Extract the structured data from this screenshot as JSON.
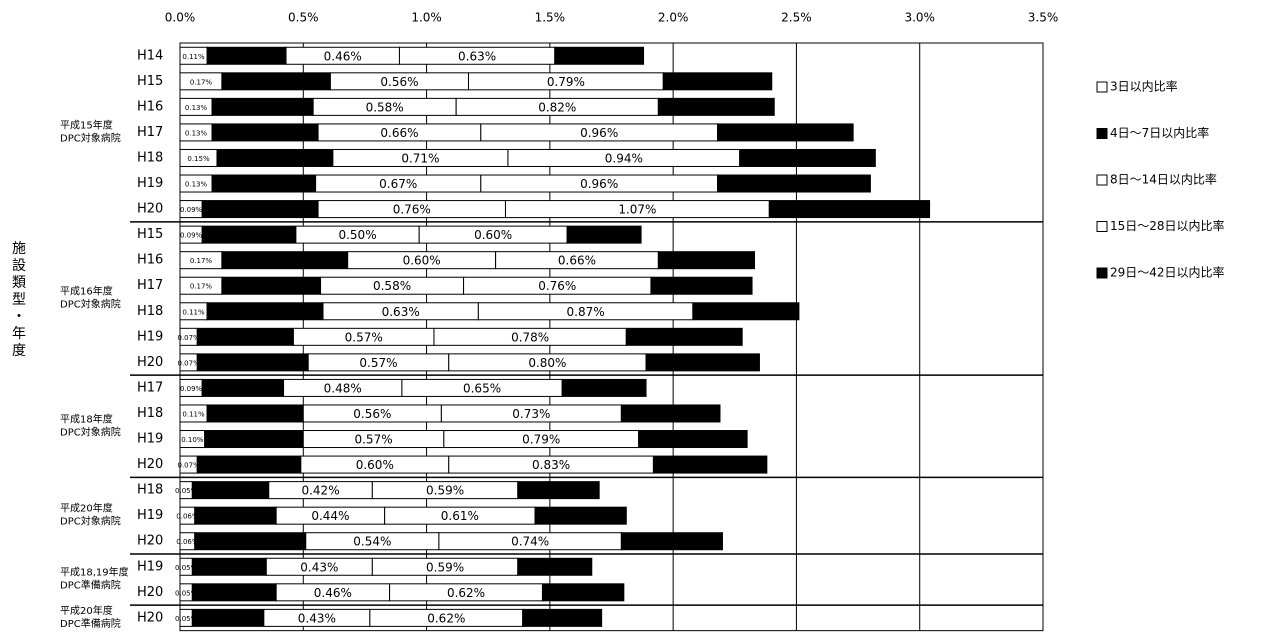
{
  "chart_data": {
    "type": "stacked-bar-horizontal",
    "axis_label": "施設類型・年度",
    "groups": [
      {
        "label": [
          "平成15年度",
          "DPC対象病院"
        ],
        "categories": [
          "H14",
          "H15",
          "H16",
          "H17",
          "H18",
          "H19",
          "H20"
        ]
      },
      {
        "label": [
          "平成16年度",
          "DPC対象病院"
        ],
        "categories": [
          "H15",
          "H16",
          "H17",
          "H18",
          "H19",
          "H20"
        ]
      },
      {
        "label": [
          "平成18年度",
          "DPC対象病院"
        ],
        "categories": [
          "H17",
          "H18",
          "H19",
          "H20"
        ]
      },
      {
        "label": [
          "平成20年度",
          "DPC対象病院"
        ],
        "categories": [
          "H18",
          "H19",
          "H20"
        ]
      },
      {
        "label": [
          "平成18,19年度",
          "DPC準備病院"
        ],
        "categories": [
          "H19",
          "H20"
        ]
      },
      {
        "label": [
          "平成20年度",
          "DPC準備病院"
        ],
        "categories": [
          "H20"
        ]
      }
    ],
    "series": [
      {
        "name": "3日以内比率",
        "color": "#ffffff",
        "values": [
          0.11,
          0.17,
          0.13,
          0.13,
          0.15,
          0.13,
          0.09,
          0.09,
          0.17,
          0.17,
          0.11,
          0.07,
          0.07,
          0.09,
          0.11,
          0.1,
          0.07,
          0.05,
          0.06,
          0.06,
          0.05,
          0.05,
          0.05
        ],
        "value_labels": [
          "0.11%",
          "0.17%",
          "0.13%",
          "0.13%",
          "0.15%",
          "0.13%",
          "0.09%",
          "0.09%",
          "0.17%",
          "0.17%",
          "0.11%",
          "0.07%",
          "0.07%",
          "0.09%",
          "0.11%",
          "0.10%",
          "0.07%",
          "0.05%",
          "0.06%",
          "0.06%",
          "0.05%",
          "0.05%",
          "0.05%"
        ]
      },
      {
        "name": "4日～7日以内比率",
        "color": "#000000",
        "values": [
          0.32,
          0.44,
          0.41,
          0.43,
          0.47,
          0.42,
          0.47,
          0.38,
          0.51,
          0.4,
          0.47,
          0.39,
          0.45,
          0.33,
          0.39,
          0.4,
          0.42,
          0.31,
          0.33,
          0.45,
          0.3,
          0.34,
          0.29
        ],
        "value_labels": [
          "0.32%",
          "0.44%",
          "0.41%",
          "0.43%",
          "0.47%",
          "0.42%",
          "0.47%",
          "0.38%",
          "0.51%",
          "0.40%",
          "0.47%",
          "0.39%",
          "0.45%",
          "0.33%",
          "0.39%",
          "0.40%",
          "0.42%",
          "0.31%",
          "0.33%",
          "0.45%",
          "0.30%",
          "0.34%",
          "0.29%"
        ]
      },
      {
        "name": "8日～14日以内比率",
        "color": "#ffffff",
        "values": [
          0.46,
          0.56,
          0.58,
          0.66,
          0.71,
          0.67,
          0.76,
          0.5,
          0.6,
          0.58,
          0.63,
          0.57,
          0.57,
          0.48,
          0.56,
          0.57,
          0.6,
          0.42,
          0.44,
          0.54,
          0.43,
          0.46,
          0.43
        ],
        "value_labels": [
          "0.46%",
          "0.56%",
          "0.58%",
          "0.66%",
          "0.71%",
          "0.67%",
          "0.76%",
          "0.50%",
          "0.60%",
          "0.58%",
          "0.63%",
          "0.57%",
          "0.57%",
          "0.48%",
          "0.56%",
          "0.57%",
          "0.60%",
          "0.42%",
          "0.44%",
          "0.54%",
          "0.43%",
          "0.46%",
          "0.43%"
        ]
      },
      {
        "name": "15日～28日以内比率",
        "color": "#ffffff",
        "values": [
          0.63,
          0.79,
          0.82,
          0.96,
          0.94,
          0.96,
          1.07,
          0.6,
          0.66,
          0.76,
          0.87,
          0.78,
          0.8,
          0.65,
          0.73,
          0.79,
          0.83,
          0.59,
          0.61,
          0.74,
          0.59,
          0.62,
          0.62
        ],
        "value_labels": [
          "0.63%",
          "0.79%",
          "0.82%",
          "0.96%",
          "0.94%",
          "0.96%",
          "1.07%",
          "0.60%",
          "0.66%",
          "0.76%",
          "0.87%",
          "0.78%",
          "0.80%",
          "0.65%",
          "0.73%",
          "0.79%",
          "0.83%",
          "0.59%",
          "0.61%",
          "0.74%",
          "0.59%",
          "0.62%",
          "0.62%"
        ]
      },
      {
        "name": "29日～42日以内比率",
        "color": "#000000",
        "values": [
          0.36,
          0.44,
          0.47,
          0.55,
          0.55,
          0.62,
          0.65,
          0.3,
          0.39,
          0.41,
          0.43,
          0.47,
          0.46,
          0.34,
          0.4,
          0.44,
          0.46,
          0.33,
          0.37,
          0.41,
          0.3,
          0.33,
          0.32
        ],
        "value_labels": [
          "0.36%",
          "0.44%",
          "0.47%",
          "0.55%",
          "0.55%",
          "0.62%",
          "0.65%",
          "0.30%",
          "0.39%",
          "0.41%",
          "0.43%",
          "0.47%",
          "0.46%",
          "0.34%",
          "0.40%",
          "0.44%",
          "0.46%",
          "0.33%",
          "0.37%",
          "0.41%",
          "0.30%",
          "0.33%",
          "0.32%"
        ]
      }
    ],
    "xlim": [
      0,
      3.5
    ],
    "xticks": [
      {
        "value": 0,
        "label": "0.0%"
      },
      {
        "value": 0.5,
        "label": "0.5%"
      },
      {
        "value": 1,
        "label": "1.0%"
      },
      {
        "value": 1.5,
        "label": "1.5%"
      },
      {
        "value": 2,
        "label": "2.0%"
      },
      {
        "value": 2.5,
        "label": "2.5%"
      },
      {
        "value": 3,
        "label": "3.0%"
      },
      {
        "value": 3.5,
        "label": "3.5%"
      }
    ],
    "grid": true,
    "legend": "right"
  }
}
